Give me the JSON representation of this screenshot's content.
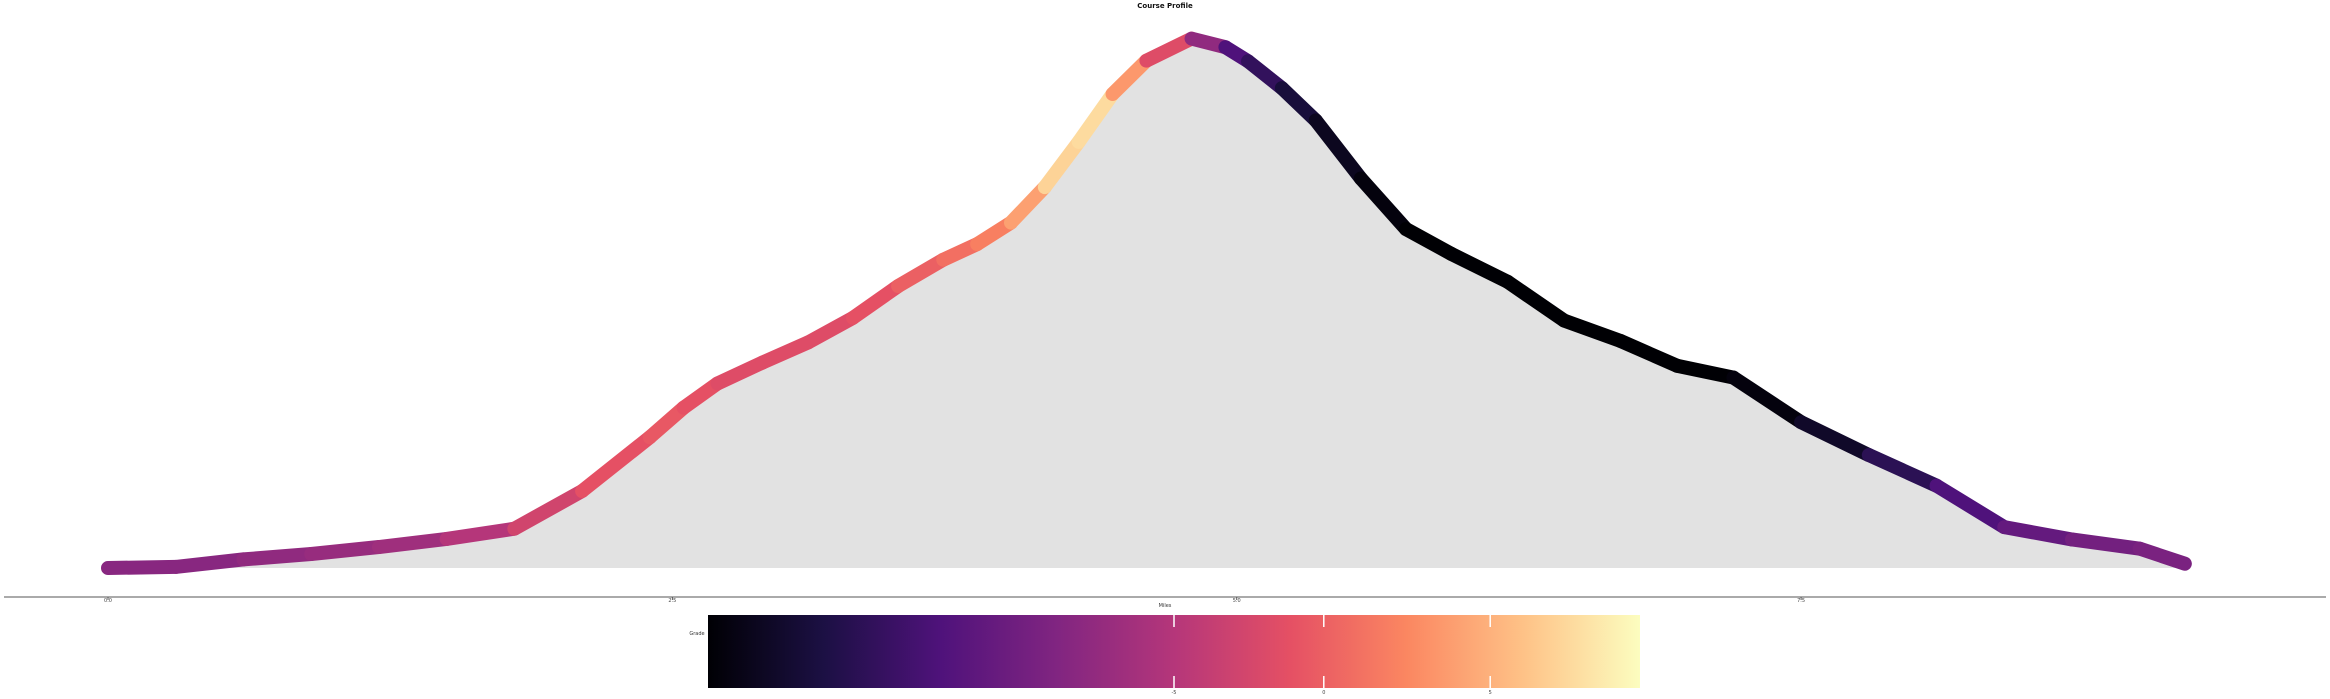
{
  "chart_data": {
    "type": "area",
    "title": "Course Profile",
    "xlabel": "Miles",
    "ylabel": "",
    "xlim": [
      0,
      9.4
    ],
    "ylim": [
      0,
      100
    ],
    "xticks": [
      0,
      2.5,
      5,
      7.5
    ],
    "xtick_labels": [
      "0.0",
      "2.5",
      "5.0",
      "7.5"
    ],
    "grid": false,
    "legend": "none",
    "fill_color": "#e2e2e2",
    "line_colormap": "magma",
    "colorbar": {
      "label": "Grade",
      "position": "bottom",
      "ticks": [
        -5,
        0,
        5
      ],
      "tick_labels": [
        "-5",
        "0",
        "5"
      ],
      "range": [
        -14,
        14
      ],
      "tick_positions": [
        0,
        4.5,
        9.5
      ]
    },
    "x": [
      0,
      0.3,
      0.6,
      0.9,
      1.2,
      1.5,
      1.8,
      2.1,
      2.4,
      2.55,
      2.7,
      2.9,
      3.1,
      3.3,
      3.5,
      3.7,
      3.85,
      4.0,
      4.15,
      4.3,
      4.45,
      4.6,
      4.8,
      4.95,
      5.05,
      5.2,
      5.35,
      5.55,
      5.75,
      5.95,
      6.2,
      6.45,
      6.7,
      6.95,
      7.2,
      7.5,
      7.8,
      8.1,
      8.4,
      8.7,
      9.0,
      9.2
    ],
    "elevation": [
      0,
      0.2,
      1.6,
      2.6,
      3.9,
      5.4,
      7.3,
      14.3,
      24.3,
      29.8,
      34.3,
      38.2,
      41.9,
      46.5,
      52.4,
      57.3,
      60.2,
      64.2,
      70.8,
      79.2,
      88.1,
      94.3,
      98.4,
      96.8,
      94.2,
      89.2,
      83.2,
      72.4,
      63.0,
      58.4,
      53.2,
      46.0,
      42.2,
      37.6,
      35.4,
      27.1,
      21.0,
      15.3,
      7.6,
      5.3,
      3.6,
      0.8
    ],
    "grade": [
      -3,
      -3,
      -3,
      -2,
      -2,
      -1,
      1,
      3,
      4,
      4,
      3,
      3,
      3,
      3,
      4,
      5,
      6,
      7,
      10,
      13,
      11,
      5,
      1,
      -6,
      -8,
      -10,
      -12,
      -13,
      -14,
      -14,
      -14,
      -14,
      -14,
      -14,
      -14,
      -13,
      -11,
      -8,
      -6,
      -5,
      -4,
      -4
    ]
  }
}
